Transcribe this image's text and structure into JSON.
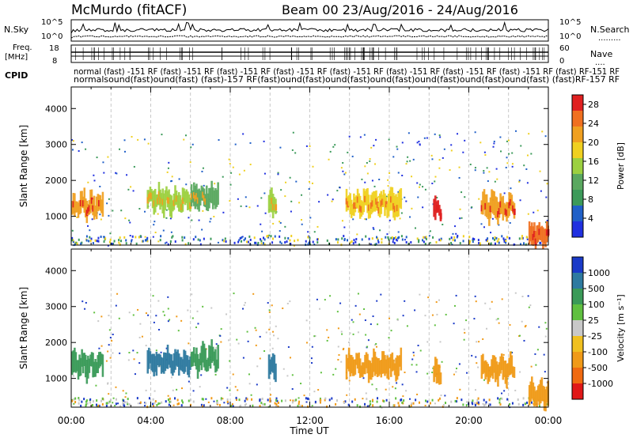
{
  "header": {
    "station": "McMurdo (fitACF)",
    "beam_dates": "Beam 00 23/Aug/2016 - 24/Aug/2016"
  },
  "left_labels": {
    "nsky": "N.Sky",
    "nsky_top": "10^5",
    "nsky_bottom": "10^0",
    "freq": "Freq.",
    "freq_unit": "[MHz]",
    "freq_top": "18",
    "freq_bottom": "8",
    "cpid": "CPID"
  },
  "right_labels": {
    "nsearch": "N.Search",
    "nsearch_top": "10^5",
    "nsearch_bottom": "10^0",
    "nsearch_dots": ".........",
    "nave": "Nave",
    "nave_top": "60",
    "nave_bottom": "0",
    "nave_dots": "...."
  },
  "cpid_text": {
    "line1": "normal   (fast) -151 RF  (fast) -151 RF  (fast) -151 RF  (fast) -151 RF  (fast) -151 RF  (fast) -151 RF  (fast) -151 RF  (fast) -151 RF  (fast)  RF-151  RF",
    "line2": "normalsound(fast)ound(fast)  (fast)-157 RF(fast)ound(fast)ound(fast)ound(fast)ound(fast)ound(fast)ound(fast)  (fast)RF-157  RF"
  },
  "colors": {
    "power_scale": [
      "#2030e0",
      "#2060c8",
      "#3c9a5a",
      "#5aa860",
      "#9cd040",
      "#f0d020",
      "#f0a020",
      "#f07020",
      "#e02020"
    ],
    "velocity_scale": [
      "#e01818",
      "#f06a10",
      "#f09a18",
      "#f0c020",
      "#c8c8c8",
      "#60c040",
      "#3a9a58",
      "#2e7aa0",
      "#1a3ac8"
    ]
  },
  "chart_data": [
    {
      "type": "heatmap",
      "title": "Power",
      "xlabel": "",
      "ylabel": "Slant Range [km]",
      "x_ticks": [
        "00:00",
        "04:00",
        "08:00",
        "12:00",
        "16:00",
        "20:00",
        "00:00"
      ],
      "y_ticks": [
        1000,
        2000,
        3000,
        4000
      ],
      "ylim": [
        200,
        4600
      ],
      "colorbar_label": "Power [dB]",
      "colorbar_ticks": [
        4,
        8,
        12,
        16,
        20,
        24,
        28
      ],
      "clim": [
        0,
        30
      ],
      "echo_regions": [
        {
          "t_start": 0.0,
          "t_end": 1.6,
          "range_center_km": 1300,
          "value_db": 20
        },
        {
          "t_start": 3.8,
          "t_end": 6.0,
          "range_center_km": 1450,
          "value_db": 14
        },
        {
          "t_start": 6.0,
          "t_end": 7.4,
          "range_center_km": 1550,
          "value_db": 12
        },
        {
          "t_start": 9.9,
          "t_end": 10.3,
          "range_center_km": 1300,
          "value_db": 14
        },
        {
          "t_start": 13.8,
          "t_end": 16.6,
          "range_center_km": 1350,
          "value_db": 18
        },
        {
          "t_start": 18.2,
          "t_end": 18.6,
          "range_center_km": 1150,
          "value_db": 28
        },
        {
          "t_start": 20.6,
          "t_end": 22.3,
          "range_center_km": 1250,
          "value_db": 20
        },
        {
          "t_start": 23.0,
          "t_end": 24.0,
          "range_center_km": 500,
          "value_db": 26
        }
      ]
    },
    {
      "type": "heatmap",
      "title": "Velocity",
      "xlabel": "Time UT",
      "ylabel": "Slant Range [km]",
      "x_ticks": [
        "00:00",
        "04:00",
        "08:00",
        "12:00",
        "16:00",
        "20:00",
        "00:00"
      ],
      "y_ticks": [
        1000,
        2000,
        3000,
        4000
      ],
      "ylim": [
        200,
        4600
      ],
      "colorbar_label": "Velocity [m s^-1]",
      "colorbar_ticks": [
        "1000",
        "500",
        "100",
        "25",
        "-25",
        "-100",
        "-500",
        "-1000"
      ],
      "echo_regions": [
        {
          "t_start": 0.0,
          "t_end": 1.6,
          "range_center_km": 1400,
          "value_ms": 200
        },
        {
          "t_start": 3.8,
          "t_end": 6.0,
          "range_center_km": 1450,
          "value_ms": 700
        },
        {
          "t_start": 6.0,
          "t_end": 7.4,
          "range_center_km": 1550,
          "value_ms": 400
        },
        {
          "t_start": 9.9,
          "t_end": 10.3,
          "range_center_km": 1300,
          "value_ms": 800
        },
        {
          "t_start": 13.8,
          "t_end": 16.6,
          "range_center_km": 1350,
          "value_ms": -250
        },
        {
          "t_start": 18.2,
          "t_end": 18.6,
          "range_center_km": 1150,
          "value_ms": -400
        },
        {
          "t_start": 20.6,
          "t_end": 22.3,
          "range_center_km": 1250,
          "value_ms": -250
        },
        {
          "t_start": 23.0,
          "t_end": 24.0,
          "range_center_km": 550,
          "value_ms": -200
        }
      ]
    }
  ]
}
